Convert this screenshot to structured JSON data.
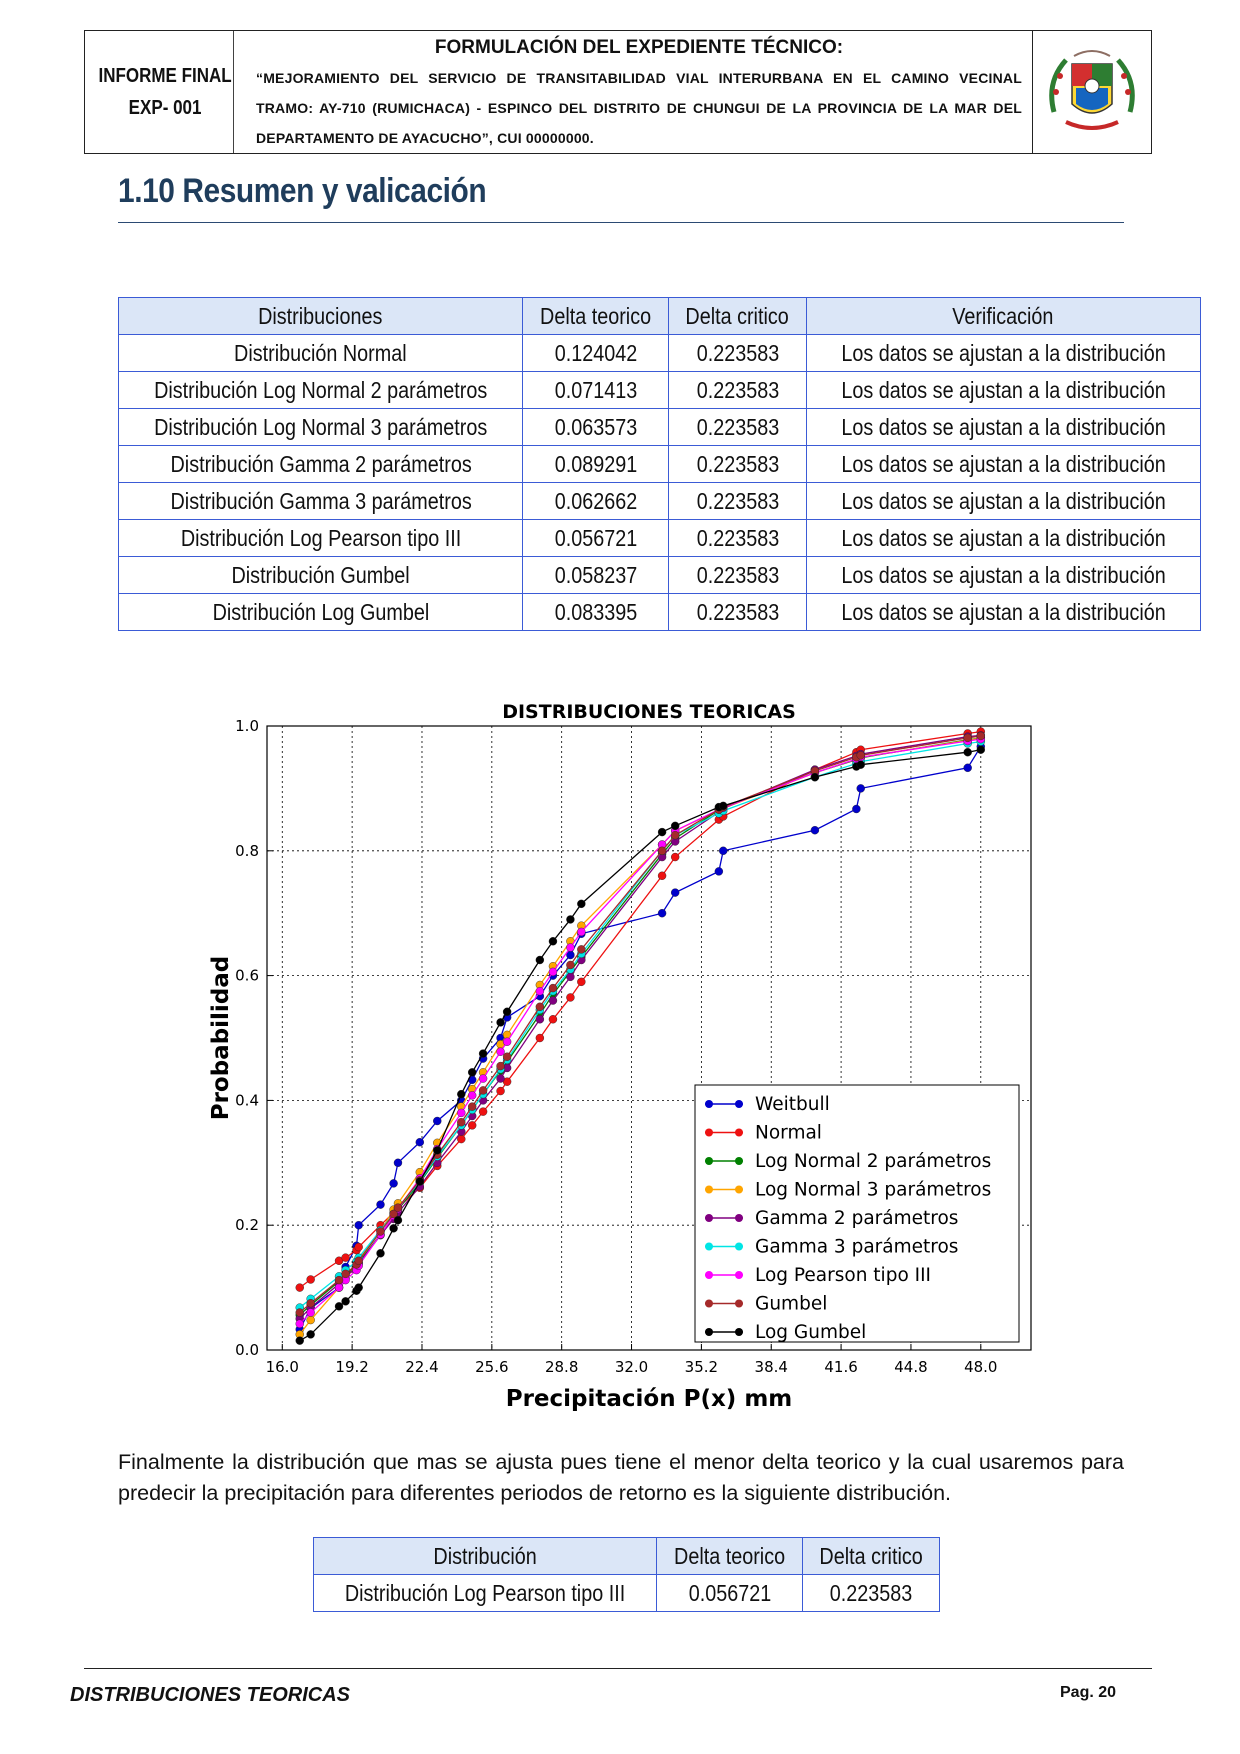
{
  "header": {
    "left_line1": "INFORME FINAL",
    "left_line2": "EXP- 001",
    "title": "FORMULACIÓN DEL EXPEDIENTE TÉCNICO:",
    "body": "“MEJORAMIENTO DEL SERVICIO DE TRANSITABILIDAD VIAL INTERURBANA EN EL CAMINO VECINAL TRAMO: AY-710 (RUMICHACA) - ESPINCO DEL DISTRITO DE CHUNGUI DE LA PROVINCIA DE LA MAR DEL DEPARTAMENTO DE AYACUCHO”, CUI 00000000."
  },
  "section_title": "1.10 Resumen y valicación",
  "table1": {
    "headers": [
      "Distribuciones",
      "Delta teorico",
      "Delta critico",
      "Verificación"
    ],
    "rows": [
      [
        "Distribución Normal",
        "0.124042",
        "0.223583",
        "Los datos se ajustan a la distribución"
      ],
      [
        "Distribución Log Normal 2 parámetros",
        "0.071413",
        "0.223583",
        "Los datos se ajustan a la distribución"
      ],
      [
        "Distribución Log Normal 3 parámetros",
        "0.063573",
        "0.223583",
        "Los datos se ajustan a la distribución"
      ],
      [
        "Distribución Gamma 2 parámetros",
        "0.089291",
        "0.223583",
        "Los datos se ajustan a la distribución"
      ],
      [
        "Distribución Gamma 3 parámetros",
        "0.062662",
        "0.223583",
        "Los datos se ajustan a la distribución"
      ],
      [
        "Distribución Log Pearson tipo III",
        "0.056721",
        "0.223583",
        "Los datos se ajustan a la distribución"
      ],
      [
        "Distribución Gumbel",
        "0.058237",
        "0.223583",
        "Los datos se ajustan a la distribución"
      ],
      [
        "Distribución Log Gumbel",
        "0.083395",
        "0.223583",
        "Los datos se ajustan a la distribución"
      ]
    ]
  },
  "paragraph_line1": "Finalmente la distribución que mas se ajusta pues tiene el menor delta teorico y la cual usaremos para",
  "paragraph_line2": "predecir la precipitación para diferentes periodos de retorno es la siguiente distribución.",
  "table2": {
    "headers": [
      "Distribución",
      "Delta teorico",
      "Delta critico"
    ],
    "row": [
      "Distribución Log Pearson tipo III",
      "0.056721",
      "0.223583"
    ]
  },
  "footer": {
    "left": "DISTRIBUCIONES TEORICAS",
    "right": "Pag. 20"
  },
  "chart_data": {
    "type": "line",
    "title": "DISTRIBUCIONES TEORICAS",
    "xlabel": "Precipitación P(x) mm",
    "ylabel": "Probabilidad",
    "xlim": [
      15.3,
      50.3
    ],
    "ylim": [
      0.0,
      1.0
    ],
    "x_ticks": [
      "16.0",
      "19.2",
      "22.4",
      "25.6",
      "28.8",
      "32.0",
      "35.2",
      "38.4",
      "41.6",
      "44.8",
      "48.0"
    ],
    "y_ticks": [
      "0.0",
      "0.2",
      "0.4",
      "0.6",
      "0.8",
      "1.0"
    ],
    "grid": true,
    "legend_position": "lower-right",
    "x": [
      16.8,
      17.3,
      18.6,
      18.9,
      19.4,
      19.5,
      20.5,
      21.1,
      21.3,
      22.3,
      23.1,
      24.2,
      24.7,
      25.2,
      26.0,
      26.3,
      27.8,
      28.4,
      29.2,
      29.7,
      33.4,
      34.0,
      36.0,
      36.2,
      40.4,
      42.3,
      42.5,
      47.4,
      48.0
    ],
    "series": [
      {
        "name": "Weitbull",
        "color": "#0000cc",
        "values": [
          0.033,
          0.067,
          0.1,
          0.133,
          0.167,
          0.2,
          0.233,
          0.267,
          0.3,
          0.333,
          0.367,
          0.4,
          0.433,
          0.467,
          0.5,
          0.533,
          0.567,
          0.6,
          0.633,
          0.667,
          0.7,
          0.733,
          0.767,
          0.8,
          0.833,
          0.867,
          0.9,
          0.933,
          0.967
        ]
      },
      {
        "name": "Normal",
        "color": "#ee1111",
        "values": [
          0.1,
          0.113,
          0.143,
          0.148,
          0.16,
          0.165,
          0.2,
          0.22,
          0.228,
          0.26,
          0.295,
          0.338,
          0.36,
          0.382,
          0.415,
          0.43,
          0.5,
          0.53,
          0.565,
          0.59,
          0.76,
          0.79,
          0.85,
          0.855,
          0.93,
          0.958,
          0.962,
          0.988,
          0.991
        ]
      },
      {
        "name": "Log Normal 2 parámetros",
        "color": "#008000",
        "values": [
          0.056,
          0.072,
          0.11,
          0.12,
          0.135,
          0.14,
          0.185,
          0.215,
          0.225,
          0.268,
          0.308,
          0.36,
          0.385,
          0.41,
          0.448,
          0.462,
          0.538,
          0.57,
          0.607,
          0.63,
          0.795,
          0.82,
          0.865,
          0.87,
          0.925,
          0.946,
          0.949,
          0.978,
          0.981
        ]
      },
      {
        "name": "Log Normal 3 parámetros",
        "color": "#ffa500",
        "values": [
          0.025,
          0.048,
          0.1,
          0.115,
          0.135,
          0.145,
          0.19,
          0.225,
          0.235,
          0.285,
          0.332,
          0.39,
          0.418,
          0.445,
          0.49,
          0.505,
          0.585,
          0.615,
          0.655,
          0.68,
          0.81,
          0.832,
          0.865,
          0.868,
          0.925,
          0.947,
          0.95,
          0.977,
          0.981
        ]
      },
      {
        "name": "Gamma 2 parámetros",
        "color": "#800080",
        "values": [
          0.05,
          0.068,
          0.106,
          0.118,
          0.132,
          0.138,
          0.184,
          0.21,
          0.22,
          0.262,
          0.3,
          0.35,
          0.375,
          0.4,
          0.435,
          0.452,
          0.53,
          0.56,
          0.598,
          0.625,
          0.79,
          0.815,
          0.862,
          0.868,
          0.93,
          0.952,
          0.955,
          0.983,
          0.985
        ]
      },
      {
        "name": "Gamma 3 parámetros",
        "color": "#00e5e5",
        "values": [
          0.068,
          0.082,
          0.118,
          0.128,
          0.142,
          0.148,
          0.192,
          0.218,
          0.228,
          0.27,
          0.31,
          0.36,
          0.385,
          0.41,
          0.45,
          0.465,
          0.545,
          0.575,
          0.61,
          0.635,
          0.8,
          0.825,
          0.86,
          0.864,
          0.918,
          0.94,
          0.943,
          0.972,
          0.975
        ]
      },
      {
        "name": "Log Pearson tipo III",
        "color": "#ff00ff",
        "values": [
          0.042,
          0.06,
          0.1,
          0.112,
          0.128,
          0.135,
          0.185,
          0.215,
          0.226,
          0.275,
          0.322,
          0.38,
          0.408,
          0.435,
          0.478,
          0.494,
          0.575,
          0.606,
          0.645,
          0.67,
          0.81,
          0.832,
          0.866,
          0.869,
          0.925,
          0.947,
          0.95,
          0.976,
          0.979
        ]
      },
      {
        "name": "Gumbel",
        "color": "#a52a2a",
        "values": [
          0.06,
          0.075,
          0.112,
          0.122,
          0.137,
          0.143,
          0.19,
          0.218,
          0.228,
          0.272,
          0.313,
          0.365,
          0.39,
          0.416,
          0.455,
          0.47,
          0.55,
          0.58,
          0.617,
          0.642,
          0.8,
          0.825,
          0.866,
          0.87,
          0.928,
          0.95,
          0.953,
          0.981,
          0.984
        ]
      },
      {
        "name": "Log Gumbel",
        "color": "#000000",
        "values": [
          0.015,
          0.025,
          0.07,
          0.078,
          0.095,
          0.1,
          0.155,
          0.195,
          0.208,
          0.27,
          0.32,
          0.41,
          0.445,
          0.475,
          0.525,
          0.542,
          0.625,
          0.655,
          0.69,
          0.715,
          0.83,
          0.84,
          0.87,
          0.872,
          0.918,
          0.935,
          0.938,
          0.958,
          0.962
        ]
      }
    ]
  }
}
